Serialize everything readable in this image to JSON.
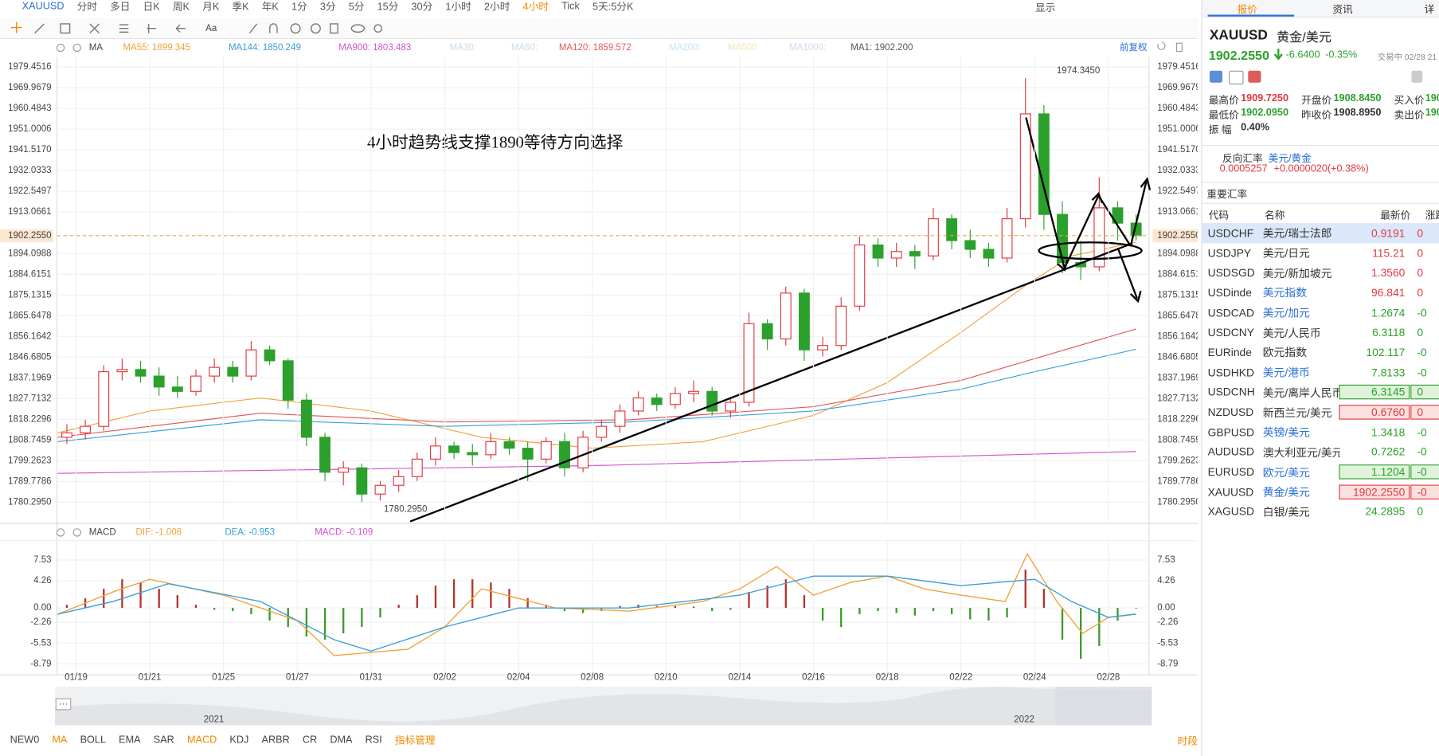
{
  "toolbar": {
    "symbol": "XAUUSD",
    "periods": [
      "分时",
      "多日",
      "日K",
      "周K",
      "月K",
      "季K",
      "年K",
      "1分",
      "3分",
      "5分",
      "15分",
      "30分",
      "1小时",
      "2小时",
      "4小时",
      "Tick",
      "5天:5分K"
    ],
    "active_index": 14,
    "display": "显示"
  },
  "chart_data": [
    {
      "type": "candlestick",
      "indicator": "MA",
      "adjust": "前复权",
      "annotation": "4小时趋势线支撑1890等待方向选择",
      "xlim": [
        -0.52,
        29.1
      ],
      "ylim": [
        1771.47,
        1984.07
      ],
      "yticks": [
        1979.4516,
        1969.9679,
        1960.4843,
        1951.0006,
        {
          "value": 1941.517,
          "label": "1941.5170"
        },
        1932.0333,
        1922.5497,
        1913.0661,
        1894.0988,
        1884.6151,
        1875.1315,
        1865.6478,
        1856.1642,
        1846.6805,
        1837.1969,
        1827.7132,
        1818.2296,
        1808.7459,
        1799.2623,
        1789.7786,
        {
          "value": 1780.295,
          "label": "1780.2950"
        }
      ],
      "grid": true,
      "up_color": "#e0393e",
      "down_color": "#2ca02c",
      "last": {
        "value": 1902.255,
        "label": "1902.2550"
      },
      "high_label": "1974.3450",
      "low_label": "1780.2950",
      "x": [
        -0.25,
        0.25,
        0.75,
        1.25,
        1.75,
        2.25,
        2.75,
        3.25,
        3.75,
        4.25,
        4.75,
        5.25,
        5.75,
        6.25,
        6.75,
        7.25,
        7.75,
        8.25,
        8.75,
        9.25,
        9.75,
        10.25,
        10.75,
        11.25,
        11.75,
        12.25,
        12.75,
        13.25,
        13.75,
        14.25,
        14.75,
        15.25,
        15.75,
        16.25,
        16.75,
        17.25,
        17.75,
        18.25,
        18.75,
        19.25,
        19.75,
        20.25,
        20.75,
        21.25,
        21.75,
        22.25,
        22.75,
        23.25,
        23.75,
        24.25,
        24.75,
        25.25,
        25.75,
        26.25,
        26.75,
        27.25,
        27.75,
        28.25,
        28.75
      ],
      "candles": [
        [
          1810,
          1816,
          1807,
          1812
        ],
        [
          1812,
          1818,
          1809,
          1815
        ],
        [
          1815,
          1843,
          1813,
          1840
        ],
        [
          1840,
          1846,
          1836,
          1841
        ],
        [
          1841,
          1845,
          1835,
          1838
        ],
        [
          1838,
          1842,
          1829,
          1833
        ],
        [
          1833,
          1838,
          1828,
          1831
        ],
        [
          1831,
          1841,
          1829,
          1838
        ],
        [
          1838,
          1846,
          1835,
          1842
        ],
        [
          1842,
          1845,
          1835,
          1838
        ],
        [
          1838,
          1854,
          1836,
          1850
        ],
        [
          1850,
          1852,
          1843,
          1845
        ],
        [
          1845,
          1846,
          1823,
          1827
        ],
        [
          1827,
          1830,
          1806,
          1810
        ],
        [
          1810,
          1812,
          1790,
          1794
        ],
        [
          1794,
          1799,
          1788,
          1796
        ],
        [
          1796,
          1798,
          1780.295,
          1784
        ],
        [
          1784,
          1790,
          1781,
          1788
        ],
        [
          1788,
          1795,
          1785,
          1792
        ],
        [
          1792,
          1803,
          1790,
          1800
        ],
        [
          1800,
          1810,
          1797,
          1806
        ],
        [
          1806,
          1808,
          1800,
          1803
        ],
        [
          1803,
          1807,
          1797,
          1802
        ],
        [
          1802,
          1812,
          1800,
          1808
        ],
        [
          1808,
          1810,
          1802,
          1805
        ],
        [
          1805,
          1808,
          1790,
          1800
        ],
        [
          1800,
          1810,
          1798,
          1808
        ],
        [
          1808,
          1812,
          1792,
          1796
        ],
        [
          1796,
          1813,
          1794,
          1810
        ],
        [
          1810,
          1818,
          1808,
          1815
        ],
        [
          1815,
          1825,
          1812,
          1822
        ],
        [
          1822,
          1831,
          1820,
          1828
        ],
        [
          1828,
          1830,
          1822,
          1825
        ],
        [
          1825,
          1833,
          1823,
          1830
        ],
        [
          1830,
          1836,
          1826,
          1831
        ],
        [
          1831,
          1833,
          1820,
          1822
        ],
        [
          1822,
          1828,
          1819,
          1826
        ],
        [
          1826,
          1867,
          1824,
          1862
        ],
        [
          1862,
          1864,
          1850,
          1855
        ],
        [
          1855,
          1879,
          1852,
          1876
        ],
        [
          1876,
          1878,
          1845,
          1850
        ],
        [
          1850,
          1856,
          1847,
          1852
        ],
        [
          1852,
          1874,
          1850,
          1870
        ],
        [
          1870,
          1902,
          1868,
          1898
        ],
        [
          1898,
          1901,
          1888,
          1892
        ],
        [
          1892,
          1899,
          1888,
          1895
        ],
        [
          1895,
          1898,
          1887,
          1893
        ],
        [
          1893,
          1915,
          1891,
          1910
        ],
        [
          1910,
          1912,
          1896,
          1900
        ],
        [
          1900,
          1905,
          1892,
          1896
        ],
        [
          1896,
          1899,
          1888,
          1892
        ],
        [
          1892,
          1915,
          1890,
          1910
        ],
        [
          1910,
          1974.345,
          1906,
          1958
        ],
        [
          1958,
          1962,
          1905,
          1912
        ],
        [
          1912,
          1918,
          1885,
          1890
        ],
        [
          1890,
          1900,
          1882,
          1888
        ],
        [
          1888,
          1929,
          1886,
          1915
        ],
        [
          1915,
          1918,
          1900,
          1908
        ],
        [
          1908,
          1912,
          1900,
          1902.255
        ]
      ],
      "ma_series": [
        {
          "legend": "MA55: 1899.345",
          "color": "#f0a33c",
          "x": [
            -0.5,
            2,
            5,
            8,
            11,
            14,
            17,
            20,
            22,
            24,
            25.8,
            27,
            28.75
          ],
          "values": [
            1812,
            1822,
            1828,
            1822,
            1810,
            1805,
            1808,
            1820,
            1835,
            1858,
            1880,
            1893,
            1899.345
          ]
        },
        {
          "legend": "MA144: 1850.249",
          "color": "#3aa0d8",
          "x": [
            -0.5,
            5,
            10,
            15,
            20,
            24,
            26,
            28.75
          ],
          "values": [
            1808,
            1818,
            1815,
            1817,
            1822,
            1832,
            1840,
            1850.249
          ]
        },
        {
          "legend": "MA900: 1803.483",
          "color": "#d255d2",
          "x": [
            -0.5,
            14,
            28.75
          ],
          "values": [
            1793.5,
            1797,
            1803.483
          ]
        },
        {
          "legend": "MA30:",
          "color": "#c9dbe8"
        },
        {
          "legend": "MA60:",
          "color": "#c9dbe8"
        },
        {
          "legend": "MA120: 1859.572",
          "color": "#e05a5a",
          "x": [
            -0.5,
            5,
            10,
            15,
            20,
            24,
            26,
            28.75
          ],
          "values": [
            1810,
            1821,
            1817,
            1818,
            1824,
            1836,
            1846,
            1859.572
          ]
        },
        {
          "legend": "MA200:",
          "color": "#bfe3f2"
        },
        {
          "legend": "MA500:",
          "color": "#f3e6b8"
        },
        {
          "legend": "MA1000:",
          "color": "#dcd3ee"
        },
        {
          "legend": "MA1: 1902.200",
          "color": "#555555"
        }
      ]
    },
    {
      "type": "macd",
      "title": "MACD",
      "xlim": [
        -0.52,
        29.1
      ],
      "ylim": [
        -10.52,
        10.42
      ],
      "yticks": [
        7.53,
        4.26,
        {
          "value": 0,
          "label": "0.00"
        },
        -2.26,
        -5.53,
        -8.79
      ],
      "xticks": [
        {
          "value": 0,
          "label": "01/19"
        },
        {
          "value": 2,
          "label": "01/21"
        },
        {
          "value": 4,
          "label": "01/25"
        },
        {
          "value": 6,
          "label": "01/27"
        },
        {
          "value": 8,
          "label": "01/31"
        },
        {
          "value": 10,
          "label": "02/02"
        },
        {
          "value": 12,
          "label": "02/04"
        },
        {
          "value": 14,
          "label": "02/08"
        },
        {
          "value": 16,
          "label": "02/10"
        },
        {
          "value": 18,
          "label": "02/14"
        },
        {
          "value": 20,
          "label": "02/16"
        },
        {
          "value": 22,
          "label": "02/18"
        },
        {
          "value": 24,
          "label": "02/22"
        },
        {
          "value": 26,
          "label": "02/24"
        },
        {
          "value": 28,
          "label": "02/28"
        }
      ],
      "series": [
        {
          "legend": "DIF: -1.008",
          "color": "#f0a33c",
          "x": [
            -0.5,
            1,
            2,
            4,
            6,
            7,
            9,
            10,
            11,
            13,
            15,
            17,
            18,
            19,
            20,
            21,
            22,
            23,
            24,
            25.2,
            25.8,
            26.6,
            27.3,
            28,
            28.75
          ],
          "values": [
            -1,
            2.5,
            4.5,
            2,
            -2,
            -7.5,
            -6.5,
            -3,
            3,
            0,
            -0.5,
            1,
            3,
            6.5,
            2,
            4,
            5,
            3,
            2,
            1,
            8.5,
            1,
            -4,
            -1.5,
            -1.008
          ]
        },
        {
          "legend": "DEA: -0.953",
          "color": "#3aa0d8",
          "x": [
            -0.5,
            1,
            2.5,
            5,
            7,
            8,
            10,
            12,
            15,
            18,
            20,
            22,
            24,
            26,
            27,
            28,
            28.75
          ],
          "values": [
            -1,
            1,
            3.8,
            1,
            -5,
            -6.8,
            -3,
            0,
            0,
            2,
            5,
            5,
            3.5,
            4.5,
            1,
            -1.5,
            -0.953
          ]
        }
      ],
      "histogram": {
        "legend": "MACD: -0.109",
        "legend_color": "#d255d2",
        "up_color": "#b5322b",
        "down_color": "#3a9a2a",
        "x": [
          -0.25,
          0.25,
          0.75,
          1.25,
          1.75,
          2.25,
          2.75,
          3.25,
          3.75,
          4.25,
          4.75,
          5.25,
          5.75,
          6.25,
          6.75,
          7.25,
          7.75,
          8.25,
          8.75,
          9.25,
          9.75,
          10.25,
          10.75,
          11.25,
          11.75,
          12.25,
          12.75,
          13.25,
          13.75,
          14.25,
          14.75,
          15.25,
          15.75,
          16.25,
          16.75,
          17.25,
          17.75,
          18.25,
          18.75,
          19.25,
          19.75,
          20.25,
          20.75,
          21.25,
          21.75,
          22.25,
          22.75,
          23.25,
          23.75,
          24.25,
          24.75,
          25.25,
          25.75,
          26.25,
          26.75,
          27.25,
          27.75,
          28.25,
          28.75
        ],
        "values": [
          0.5,
          1.5,
          3,
          4.5,
          4,
          3,
          2,
          0.5,
          -0.3,
          -0.5,
          -1,
          -2,
          -3,
          -4.5,
          -5,
          -4,
          -3,
          -1.5,
          0.5,
          2,
          3.5,
          4.5,
          4.5,
          4,
          3,
          1.5,
          0.5,
          -0.5,
          -0.8,
          -0.5,
          0.3,
          0.5,
          0.3,
          0.3,
          0.2,
          -0.5,
          -0.3,
          2.5,
          3.5,
          4.5,
          2,
          -2,
          -3,
          -1,
          -0.5,
          -0.8,
          -1.2,
          -0.5,
          -1,
          -1.8,
          -2,
          -1.5,
          6,
          3,
          -5,
          -8,
          -6,
          -2,
          -0.109
        ]
      }
    }
  ],
  "navigator": {
    "years": [
      "2021",
      "2022"
    ]
  },
  "indicator_tabs": {
    "items": [
      "NEW0",
      "MA",
      "BOLL",
      "EMA",
      "SAR",
      "MACD",
      "KDJ",
      "ARBR",
      "CR",
      "DMA",
      "RSI"
    ],
    "active": [
      1,
      5
    ],
    "manage": "指标管理",
    "sessions": "时段"
  },
  "quote_panel": {
    "tabs": [
      "报价",
      "资讯",
      "详"
    ],
    "symbol": "XAUUSD",
    "name": "黄金/美元",
    "price": "1902.2550",
    "change": "-6.6400",
    "change_pct": "-0.35%",
    "status": "交易中 02/28 21",
    "stats": [
      [
        "最高价",
        "1909.7250",
        "开盘价",
        "1908.8450",
        "买入价",
        "190"
      ],
      [
        "最低价",
        "1902.0950",
        "昨收价",
        "1908.8950",
        "卖出价",
        "190"
      ],
      [
        "振 幅",
        "0.40%"
      ]
    ],
    "reverse_title": "反向汇率",
    "reverse_pair": "美元/黄金",
    "reverse_price": "0.0005257",
    "reverse_change": "+0.0000020(+0.38%)",
    "section": "重要汇率",
    "columns": [
      "代码",
      "名称",
      "最新价",
      "涨跌"
    ],
    "rows": [
      {
        "cells": [
          "USDCHF",
          "美元/瑞士法郎",
          "0.9191",
          "0"
        ],
        "color": "#e0393e",
        "selected": true
      },
      {
        "cells": [
          "USDJPY",
          "美元/日元",
          "115.21",
          "0"
        ],
        "color": "#e0393e"
      },
      {
        "cells": [
          "USDSGD",
          "美元/新加坡元",
          "1.3560",
          "0"
        ],
        "color": "#e0393e"
      },
      {
        "cells": [
          "USDinde",
          "美元指数",
          "96.841",
          "0"
        ],
        "color": "#e0393e",
        "link": true
      },
      {
        "cells": [
          "USDCAD",
          "美元/加元",
          "1.2674",
          "-0"
        ],
        "color": "#2ca02c",
        "link": true
      },
      {
        "cells": [
          "USDCNY",
          "美元/人民币",
          "6.3118",
          "0"
        ],
        "color": "#2ca02c"
      },
      {
        "cells": [
          "EURinde",
          "欧元指数",
          "102.117",
          "-0"
        ],
        "color": "#2ca02c"
      },
      {
        "cells": [
          "USDHKD",
          "美元/港币",
          "7.8133",
          "-0"
        ],
        "color": "#2ca02c",
        "link": true
      },
      {
        "cells": [
          "USDCNH",
          "美元/离岸人民币",
          "6.3145",
          "0"
        ],
        "color": "#2ca02c",
        "box": "#dff3dc"
      },
      {
        "cells": [
          "NZDUSD",
          "新西兰元/美元",
          "0.6760",
          "0"
        ],
        "color": "#e0393e",
        "box": "#fbe0e0"
      },
      {
        "cells": [
          "GBPUSD",
          "英镑/美元",
          "1.3418",
          "-0"
        ],
        "color": "#2ca02c",
        "link": true
      },
      {
        "cells": [
          "AUDUSD",
          "澳大利亚元/美元",
          "0.7262",
          "-0"
        ],
        "color": "#2ca02c"
      },
      {
        "cells": [
          "EURUSD",
          "欧元/美元",
          "1.1204",
          "-0"
        ],
        "color": "#2ca02c",
        "link": true,
        "box": "#dff3dc"
      },
      {
        "cells": [
          "XAUUSD",
          "黄金/美元",
          "1902.2550",
          "-0"
        ],
        "color": "#e0393e",
        "link": true,
        "box": "#fbe0e0"
      },
      {
        "cells": [
          "XAGUSD",
          "白银/美元",
          "24.2895",
          "0"
        ],
        "color": "#2ca02c"
      }
    ]
  }
}
